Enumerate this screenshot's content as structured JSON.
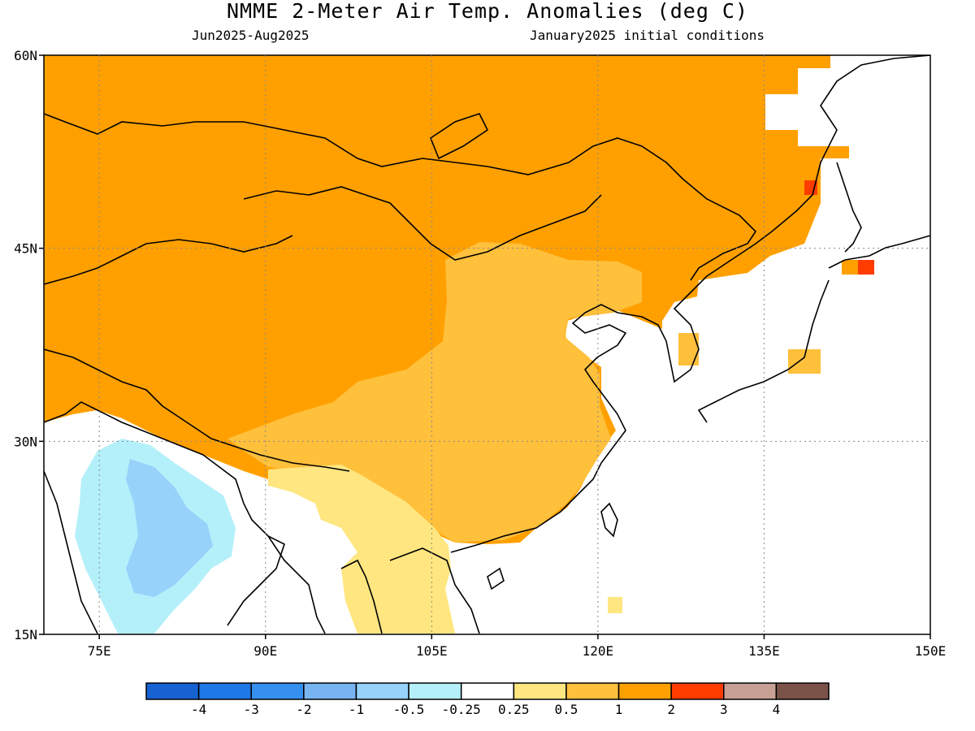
{
  "header": {
    "title": "NMME 2-Meter Air Temp. Anomalies (deg C)",
    "period": "Jun2025-Aug2025",
    "initial_conditions": "January2025 initial conditions"
  },
  "axes": {
    "lat_ticks": [
      "60N",
      "45N",
      "30N",
      "15N"
    ],
    "lon_ticks": [
      "75E",
      "90E",
      "105E",
      "120E",
      "135E",
      "150E"
    ],
    "lat_values": [
      60,
      45,
      30,
      15
    ],
    "lon_values": [
      75,
      90,
      105,
      120,
      135,
      150
    ],
    "lon_range": [
      70,
      150
    ],
    "lat_range": [
      15,
      60
    ]
  },
  "colorbar": {
    "labels": [
      "-4",
      "-3",
      "-2",
      "-1",
      "-0.5",
      "-0.25",
      "0.25",
      "0.5",
      "1",
      "2",
      "3",
      "4"
    ],
    "colors": [
      "#1662d2",
      "#1e78e6",
      "#3690f0",
      "#78b4f0",
      "#96d2fa",
      "#b4f0fa",
      "#ffffff",
      "#ffe680",
      "#ffc03c",
      "#ffa000",
      "#ff3c00",
      "#c8a096",
      "#7a5248"
    ]
  },
  "field_colors": {
    "anomaly_1_to_2": "#ffa000",
    "anomaly_0_5_to_1": "#ffc03c",
    "anomaly_0_25_to_0_5": "#ffe680",
    "anomaly_2_to_3": "#ff3c00",
    "anomaly_minus_0_5_to_minus_0_25": "#b4f0fa",
    "anomaly_minus_1_to_minus_0_5": "#96d2fa"
  }
}
